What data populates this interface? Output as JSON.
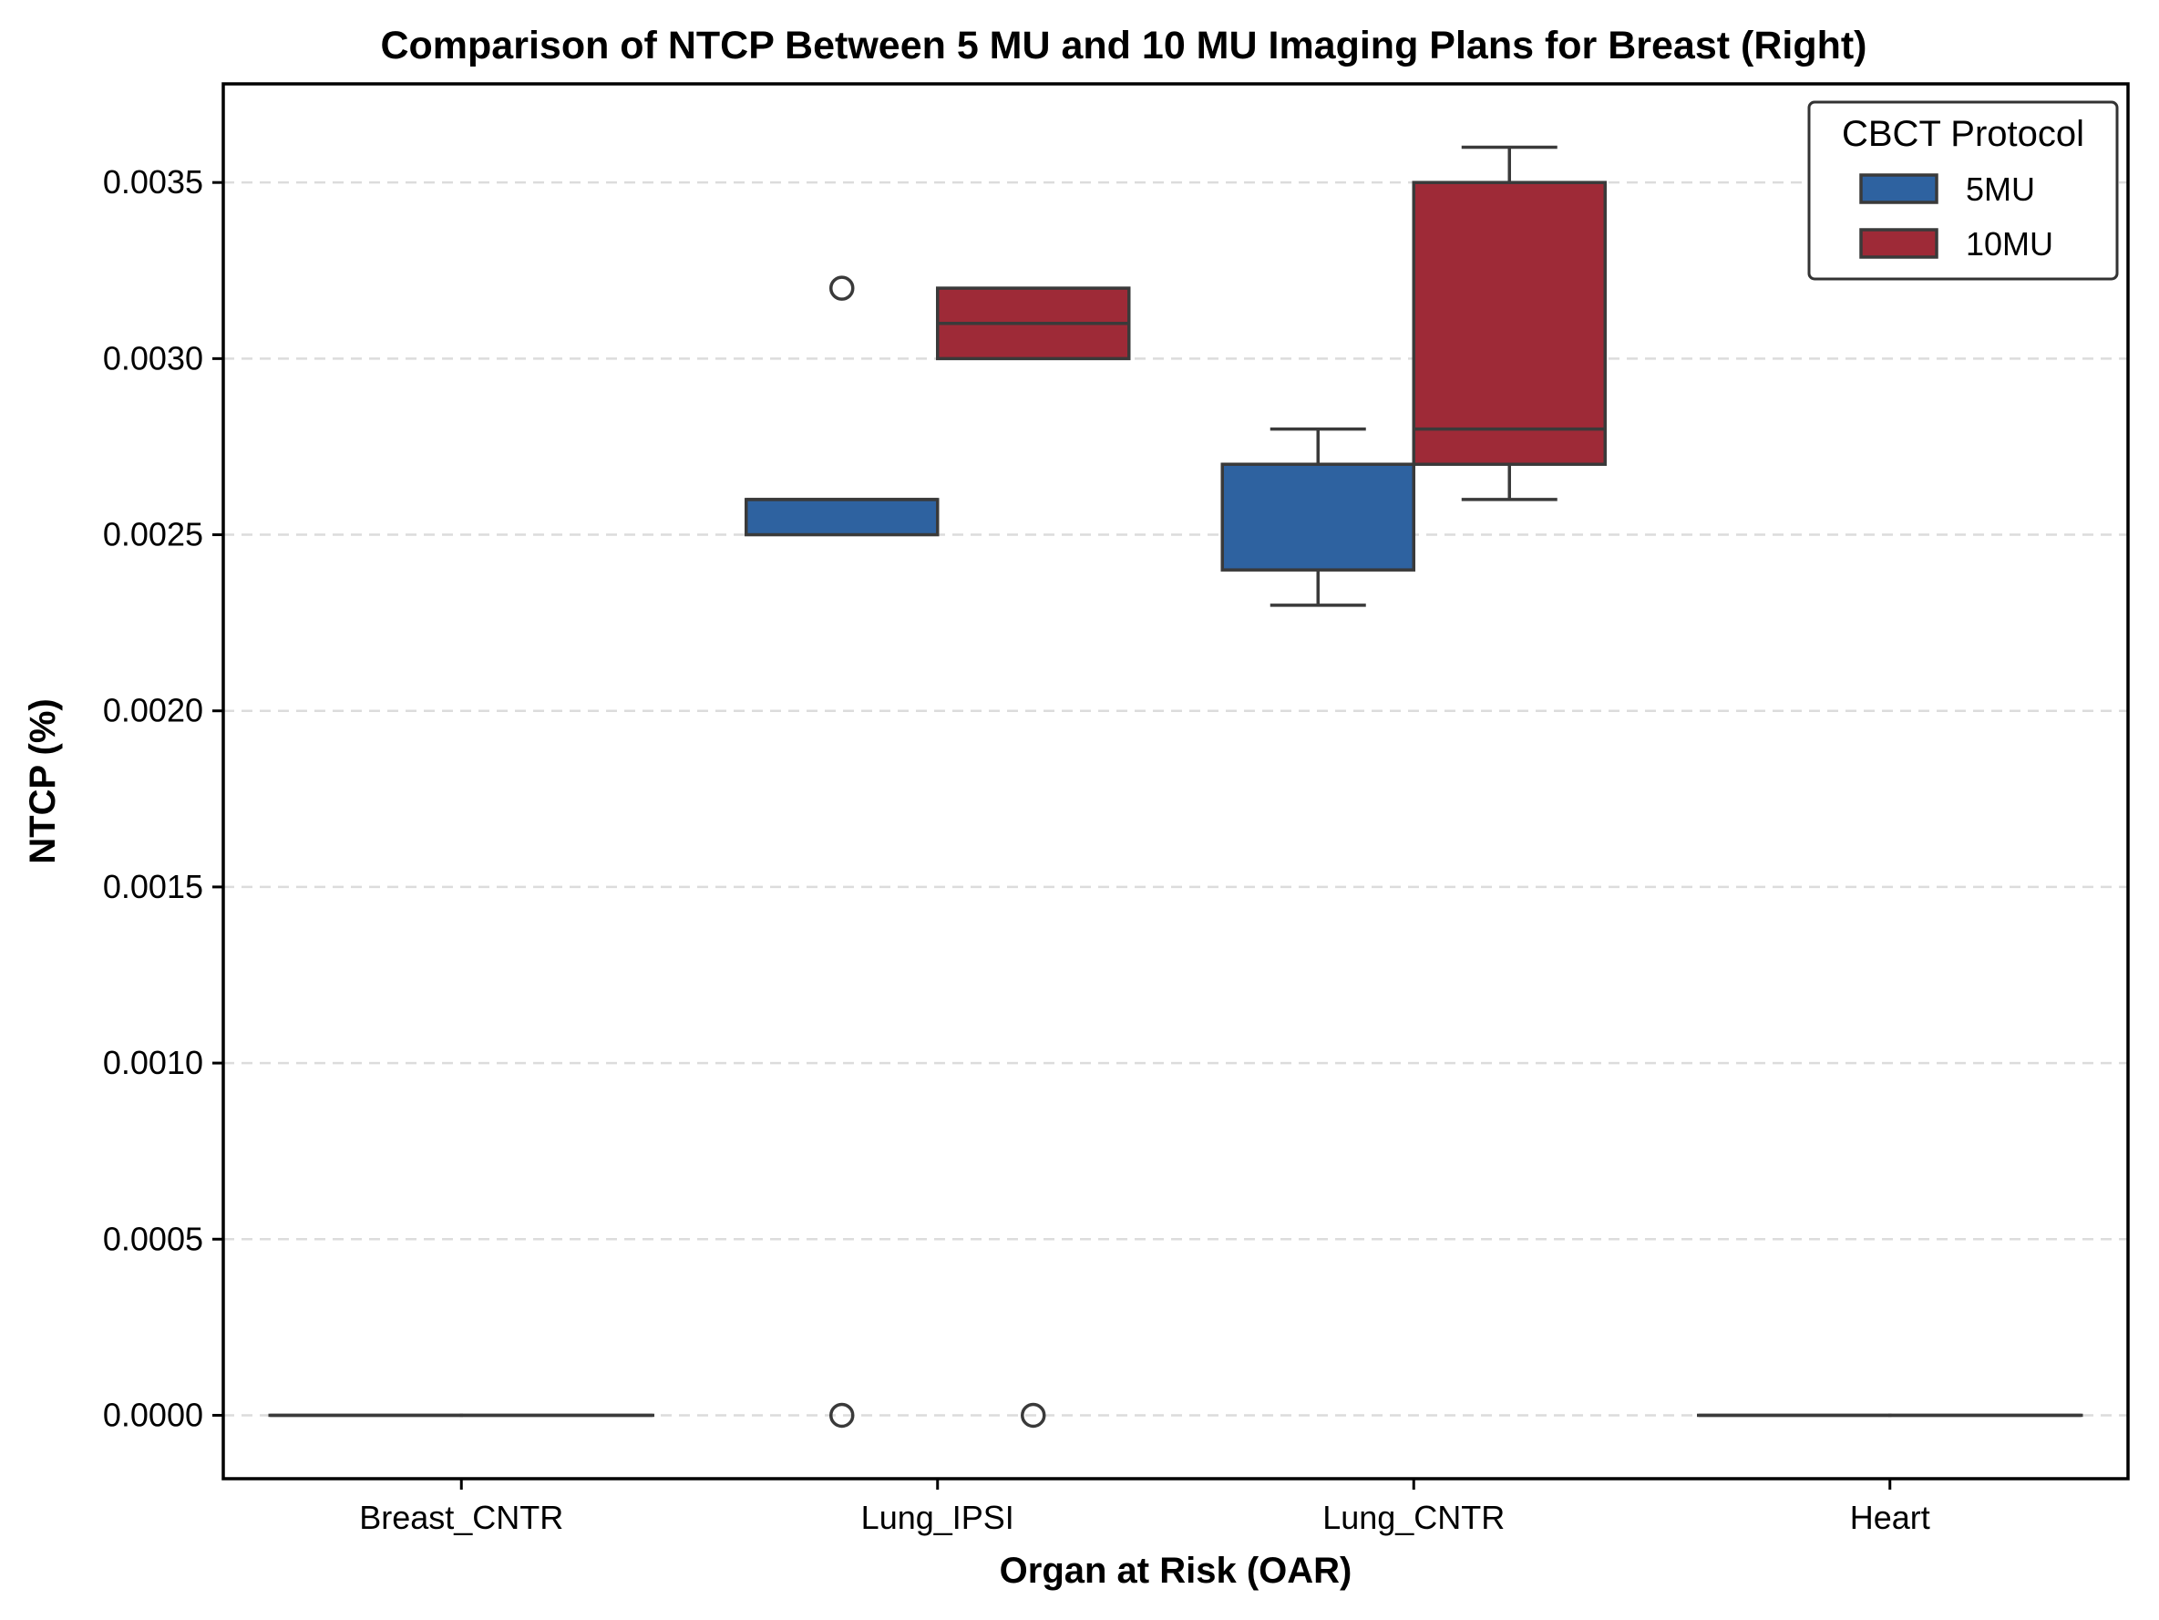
{
  "chart_data": {
    "type": "box",
    "title": "Comparison of NTCP Between 5 MU and 10 MU Imaging Plans for Breast (Right)",
    "xlabel": "Organ at Risk (OAR)",
    "ylabel": "NTCP (%)",
    "categories": [
      "Breast_CNTR",
      "Lung_IPSI",
      "Lung_CNTR",
      "Heart"
    ],
    "ylim": [
      -0.00018,
      0.00378
    ],
    "yticks": [
      0.0,
      0.0005,
      0.001,
      0.0015,
      0.002,
      0.0025,
      0.003,
      0.0035
    ],
    "ytick_labels": [
      "0.0000",
      "0.0005",
      "0.0010",
      "0.0015",
      "0.0020",
      "0.0025",
      "0.0030",
      "0.0035"
    ],
    "grid": "y-dashed",
    "legend": {
      "title": "CBCT Protocol",
      "position": "top-right",
      "entries": [
        "5MU",
        "10MU"
      ]
    },
    "series": [
      {
        "name": "5MU",
        "color": "#2e62a0",
        "boxes": [
          {
            "category": "Breast_CNTR",
            "whisker_low": 0.0,
            "q1": 0.0,
            "median": 0.0,
            "q3": 0.0,
            "whisker_high": 0.0,
            "outliers": []
          },
          {
            "category": "Lung_IPSI",
            "whisker_low": 0.0025,
            "q1": 0.0025,
            "median": 0.0026,
            "q3": 0.0026,
            "whisker_high": 0.0026,
            "outliers": [
              0.0032,
              0.0
            ]
          },
          {
            "category": "Lung_CNTR",
            "whisker_low": 0.0023,
            "q1": 0.0024,
            "median": 0.0027,
            "q3": 0.0027,
            "whisker_high": 0.0028,
            "outliers": []
          },
          {
            "category": "Heart",
            "whisker_low": 0.0,
            "q1": 0.0,
            "median": 0.0,
            "q3": 0.0,
            "whisker_high": 0.0,
            "outliers": []
          }
        ]
      },
      {
        "name": "10MU",
        "color": "#9e2a37",
        "boxes": [
          {
            "category": "Breast_CNTR",
            "whisker_low": 0.0,
            "q1": 0.0,
            "median": 0.0,
            "q3": 0.0,
            "whisker_high": 0.0,
            "outliers": []
          },
          {
            "category": "Lung_IPSI",
            "whisker_low": 0.003,
            "q1": 0.003,
            "median": 0.0031,
            "q3": 0.0032,
            "whisker_high": 0.0032,
            "outliers": [
              0.0
            ]
          },
          {
            "category": "Lung_CNTR",
            "whisker_low": 0.0026,
            "q1": 0.0027,
            "median": 0.0028,
            "q3": 0.0035,
            "whisker_high": 0.0036,
            "outliers": []
          },
          {
            "category": "Heart",
            "whisker_low": 0.0,
            "q1": 0.0,
            "median": 0.0,
            "q3": 0.0,
            "whisker_high": 0.0,
            "outliers": []
          }
        ]
      }
    ]
  },
  "colors": {
    "box_edge": "#3a3a3a",
    "grid": "#dcdcdc",
    "axes": "#000000"
  }
}
